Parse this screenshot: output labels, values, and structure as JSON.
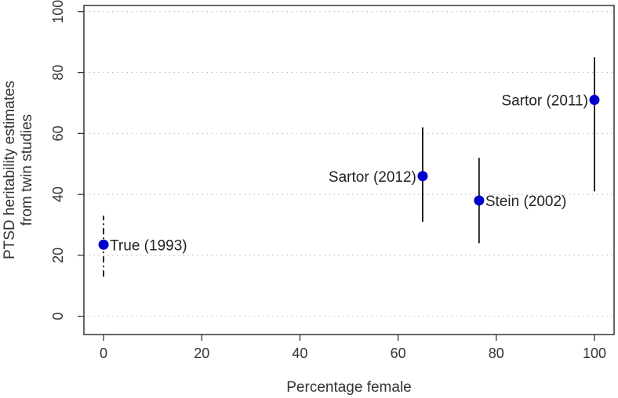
{
  "chart_data": {
    "type": "scatter",
    "title": "",
    "xlabel": "Percentage female",
    "ylabel_lines": [
      "PTSD heritability estimates",
      "from twin studies"
    ],
    "xlim": [
      -4,
      104
    ],
    "ylim": [
      -6,
      102
    ],
    "x_ticks": [
      0,
      20,
      40,
      60,
      80,
      100
    ],
    "y_ticks": [
      0,
      20,
      40,
      60,
      80,
      100
    ],
    "grid": "horizontal-dotted",
    "legend": "none",
    "point_color": "#0000cc",
    "points": [
      {
        "label": "True (1993)",
        "x": 0,
        "y": 23.5,
        "ci": [
          13,
          33
        ],
        "ci_style": "dashdot",
        "label_side": "right"
      },
      {
        "label": "Sartor (2012)",
        "x": 65,
        "y": 46,
        "ci": [
          31,
          62
        ],
        "ci_style": "solid",
        "label_side": "left"
      },
      {
        "label": "Stein (2002)",
        "x": 76.5,
        "y": 38,
        "ci": [
          24,
          52
        ],
        "ci_style": "solid",
        "label_side": "right"
      },
      {
        "label": "Sartor (2011)",
        "x": 100,
        "y": 71,
        "ci": [
          41,
          85
        ],
        "ci_style": "solid",
        "label_side": "left"
      }
    ]
  }
}
